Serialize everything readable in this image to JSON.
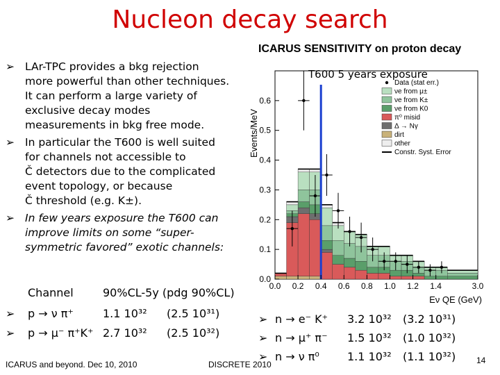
{
  "title": "Nucleon decay search",
  "subtitle": "ICARUS SENSITIVITY on proton decay",
  "bullets": [
    {
      "lines": [
        "LAr-TPC provides a bkg rejection",
        "more powerful than other techniques.",
        "It can perform a large variety of",
        "exclusive decay modes",
        "measurements in bkg free mode."
      ],
      "italic": false
    },
    {
      "lines": [
        "In particular the T600 is well suited",
        "for channels not accessible to",
        "Č detectors due to the complicated",
        "event topology, or because",
        "Č threshold (e.g. K±)."
      ],
      "italic": false
    },
    {
      "lines": [
        "In few years exposure the T600 can",
        "improve limits on some “super-",
        "symmetric favored” exotic channels:"
      ],
      "italic": true
    }
  ],
  "channels_header": {
    "channel": "Channel",
    "limits": "90%CL-5y (pdg 90%CL)"
  },
  "channels_left": [
    {
      "reaction": "p → ν π⁺",
      "limit": "1.1 10³²",
      "pdg": "(2.5 10³¹)"
    },
    {
      "reaction": "p → μ⁻ π⁺K⁺",
      "limit": "2.7 10³²",
      "pdg": "(2.5 10³²)"
    }
  ],
  "channels_right": [
    {
      "reaction": "n → e⁻ K⁺",
      "limit": "3.2 10³²",
      "pdg": "(3.2 10³¹)"
    },
    {
      "reaction": "n → μ⁺ π⁻",
      "limit": "1.5 10³²",
      "pdg": "(1.0 10³²)"
    },
    {
      "reaction": "n → ν π⁰",
      "limit": "1.1 10³²",
      "pdg": "(1.1 10³²)"
    }
  ],
  "footer": {
    "left": "ICARUS and beyond. Dec 10, 2010",
    "center": "DISCRETE 2010",
    "page": "14"
  },
  "colors": {
    "title": "#d00000",
    "dirt": "#c9b27a",
    "misid": "#d95a5a",
    "kpm": "#8fc49c",
    "kmu": "#b9dfc0",
    "k0": "#5a9e6a",
    "delta": "#6e6e6e",
    "other": "#eeeeee",
    "syst": "#000000"
  },
  "chart_data": {
    "type": "bar",
    "title": "T600 5 years exposure",
    "xlabel": "Eν QE (GeV)",
    "ylabel": "Events/MeV",
    "xlim": [
      0.0,
      3.0
    ],
    "ylim": [
      0.0,
      0.7
    ],
    "x_ticks": [
      "0.0",
      "0.2",
      "0.4",
      "0.6",
      "0.8",
      "1.0",
      "1.2",
      "1.4",
      "3.0"
    ],
    "y_ticks": [
      "0.0",
      "0.1",
      "0.2",
      "0.3",
      "0.4",
      "0.5",
      "0.6"
    ],
    "bin_edges": [
      0.0,
      0.1,
      0.2,
      0.3,
      0.4,
      0.5,
      0.6,
      0.7,
      0.8,
      0.9,
      1.0,
      1.1,
      1.2,
      1.3,
      1.4,
      1.5,
      3.0
    ],
    "stack_series": [
      {
        "name": "dirt",
        "color": "#c9b27a",
        "values": [
          0.01,
          0.01,
          0.01,
          0.01,
          0.0,
          0.0,
          0.0,
          0.0,
          0.0,
          0.0,
          0.0,
          0.0,
          0.0,
          0.0,
          0.0,
          0.0
        ]
      },
      {
        "name": "π⁰ misid",
        "color": "#d95a5a",
        "values": [
          0.01,
          0.18,
          0.21,
          0.19,
          0.09,
          0.05,
          0.04,
          0.03,
          0.02,
          0.02,
          0.01,
          0.01,
          0.01,
          0.0,
          0.0,
          0.0
        ]
      },
      {
        "name": "Δ → Nγ",
        "color": "#6e6e6e",
        "values": [
          0.0,
          0.02,
          0.02,
          0.02,
          0.01,
          0.0,
          0.0,
          0.0,
          0.0,
          0.0,
          0.0,
          0.0,
          0.0,
          0.0,
          0.0,
          0.0
        ]
      },
      {
        "name": "νe from K0",
        "color": "#5a9e6a",
        "values": [
          0.0,
          0.01,
          0.02,
          0.03,
          0.03,
          0.03,
          0.03,
          0.03,
          0.02,
          0.02,
          0.02,
          0.02,
          0.01,
          0.01,
          0.01,
          0.01
        ]
      },
      {
        "name": "νe from K±",
        "color": "#8fc49c",
        "values": [
          0.0,
          0.01,
          0.04,
          0.05,
          0.05,
          0.05,
          0.05,
          0.05,
          0.04,
          0.04,
          0.03,
          0.03,
          0.02,
          0.02,
          0.02,
          0.01
        ]
      },
      {
        "name": "νe from μ±",
        "color": "#b9dfc0",
        "values": [
          0.0,
          0.02,
          0.06,
          0.06,
          0.06,
          0.05,
          0.04,
          0.04,
          0.03,
          0.03,
          0.02,
          0.02,
          0.02,
          0.01,
          0.01,
          0.01
        ]
      },
      {
        "name": "other",
        "color": "#eeeeee",
        "values": [
          0.0,
          0.01,
          0.01,
          0.01,
          0.01,
          0.01,
          0.0,
          0.0,
          0.0,
          0.0,
          0.0,
          0.0,
          0.0,
          0.0,
          0.0,
          0.0
        ]
      }
    ],
    "data_points": {
      "name": "Data (stat err.)",
      "x": [
        0.15,
        0.25,
        0.35,
        0.45,
        0.55,
        0.65,
        0.75,
        0.85,
        0.95,
        1.05,
        1.15,
        1.25,
        1.35,
        1.45
      ],
      "y": [
        0.17,
        0.6,
        0.28,
        0.35,
        0.23,
        0.16,
        0.14,
        0.1,
        0.06,
        0.06,
        0.05,
        0.04,
        0.03,
        0.04
      ],
      "err": [
        0.06,
        0.1,
        0.07,
        0.07,
        0.06,
        0.05,
        0.05,
        0.04,
        0.03,
        0.03,
        0.03,
        0.02,
        0.02,
        0.02
      ]
    },
    "legend": [
      "Data (stat err.)",
      "νe from μ±",
      "νe from K±",
      "νe from K0",
      "π⁰ misid",
      "Δ → Nγ",
      "dirt",
      "other",
      "Constr. Syst. Error"
    ],
    "legend_position": "top-right"
  }
}
